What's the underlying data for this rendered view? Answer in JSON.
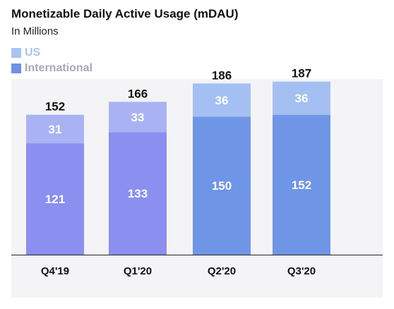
{
  "chart_data": {
    "type": "bar",
    "stacked": true,
    "title": "Monetizable Daily Active Usage (mDAU)",
    "subtitle": "In Millions",
    "categories": [
      "Q4'19",
      "Q1'20",
      "Q2'20",
      "Q3'20"
    ],
    "series": [
      {
        "name": "International",
        "values": [
          121,
          133,
          150,
          152
        ],
        "colors": [
          "#8a8ff0",
          "#8a8ff0",
          "#6f95e6",
          "#6f95e6"
        ]
      },
      {
        "name": "US",
        "values": [
          31,
          33,
          36,
          36
        ],
        "colors": [
          "#a9b3f4",
          "#a9b3f4",
          "#a4c0f2",
          "#a4c0f2"
        ]
      }
    ],
    "totals": [
      152,
      166,
      186,
      187
    ],
    "legend_position": "top-left",
    "grid": false
  },
  "legend": {
    "us": {
      "label": "US",
      "color": "#a8c4f5",
      "text_color": "#a8c4f5"
    },
    "international": {
      "label": "International",
      "color": "#6f8fe6",
      "text_color": "#a8a8b8"
    }
  },
  "colors": {
    "plot_background": "#f4f4f6",
    "axis": "#222222"
  }
}
